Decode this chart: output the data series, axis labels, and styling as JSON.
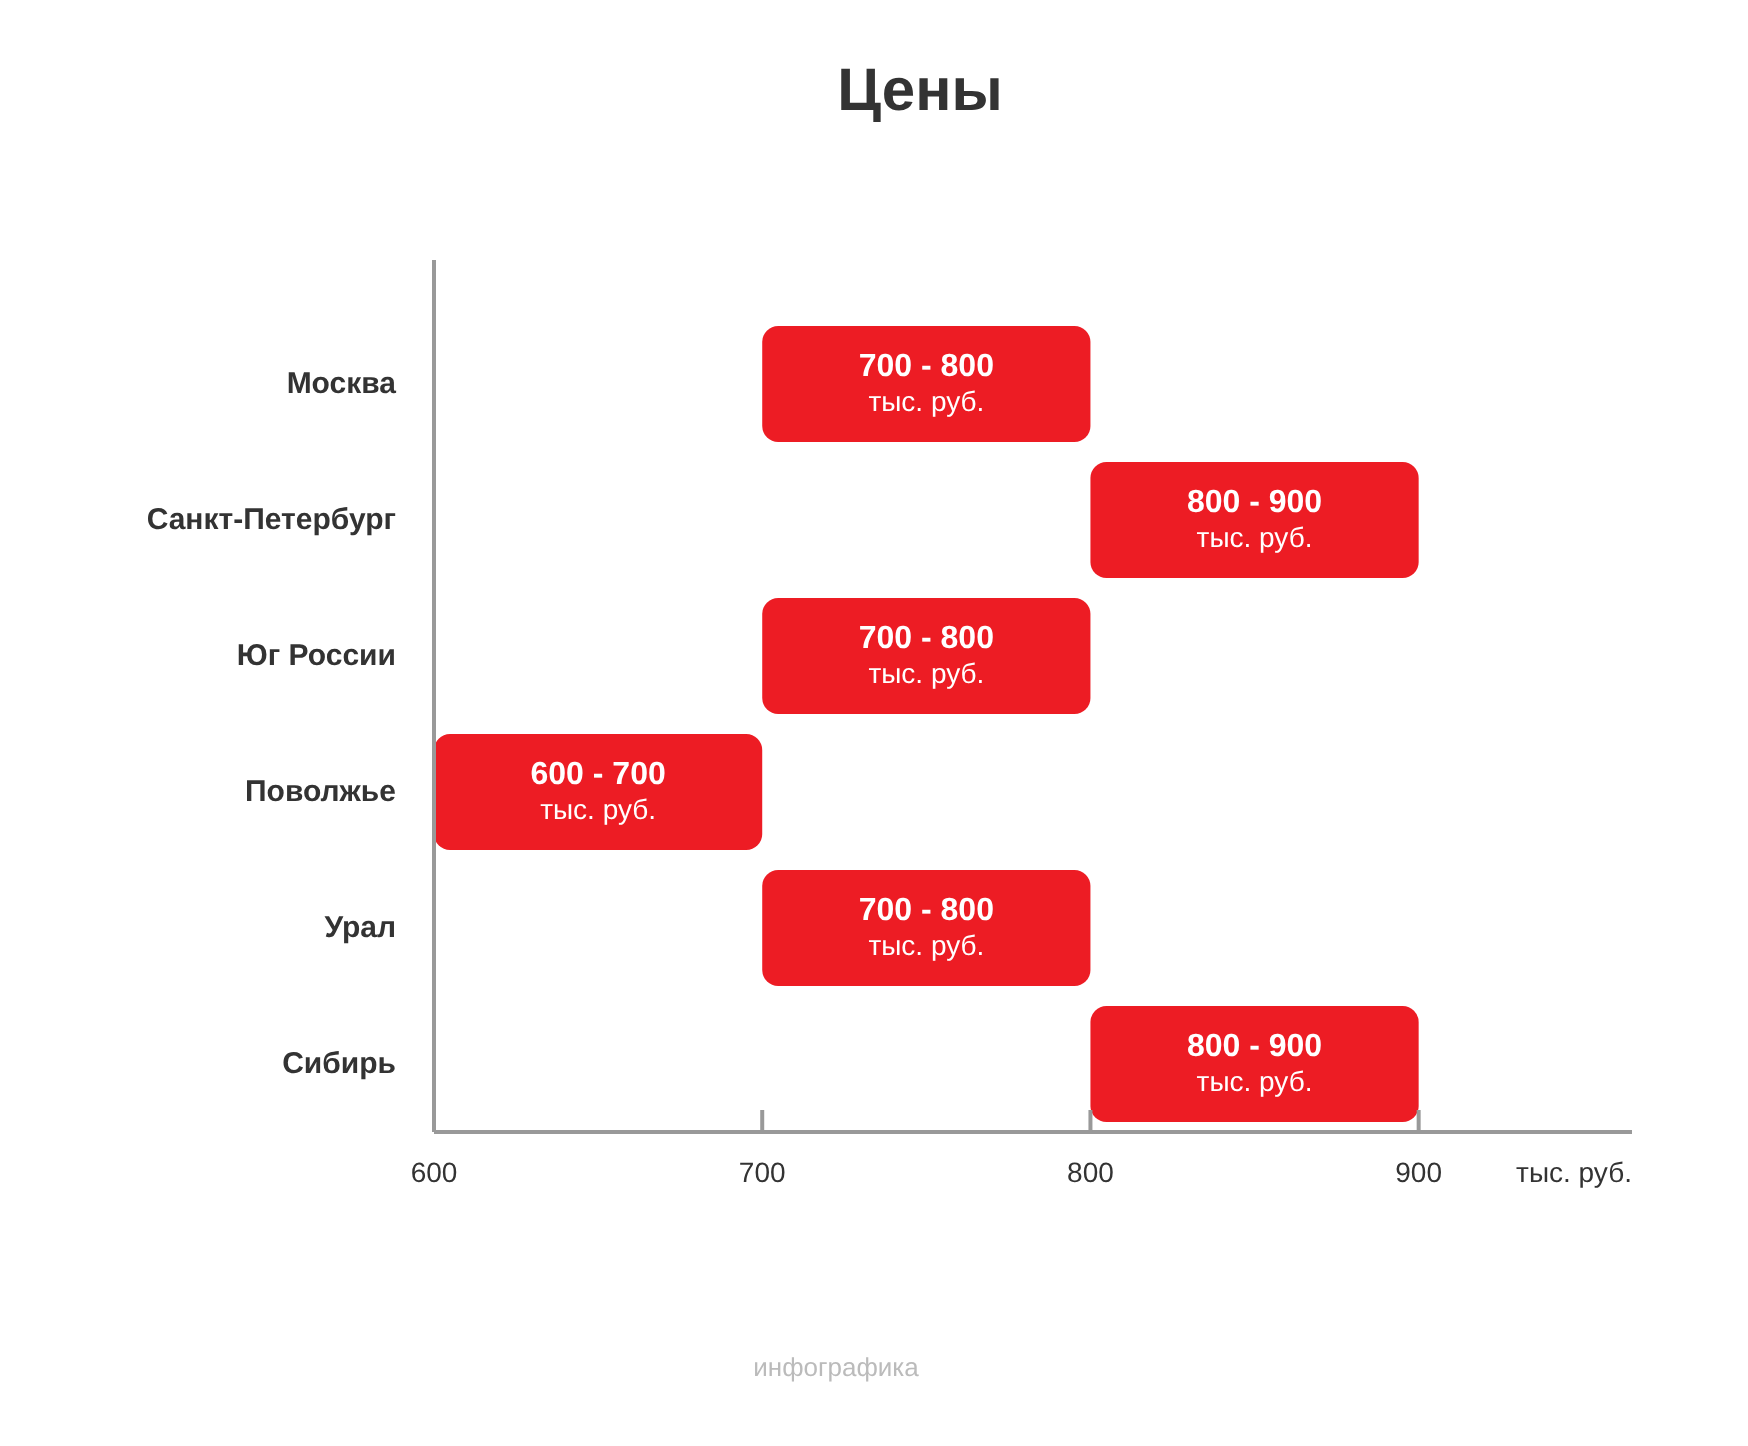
{
  "chart_data": {
    "type": "bar",
    "orientation": "horizontal",
    "title": "Цены",
    "xlabel": "тыс. руб.",
    "categories": [
      "Москва",
      "Санкт-Петербург",
      "Юг России",
      "Поволжье",
      "Урал",
      "Сибирь"
    ],
    "base": [
      700,
      800,
      700,
      600,
      700,
      800
    ],
    "values": [
      100,
      100,
      100,
      100,
      100,
      100
    ],
    "color": "#ed1c24",
    "xlim": [
      600,
      965
    ],
    "xticks": [
      600,
      700,
      800,
      900
    ],
    "annotations": [
      {
        "text": "700 - 800\nтыс. руб.",
        "x": 750,
        "y": "Москва"
      },
      {
        "text": "800 - 900\nтыс. руб.",
        "x": 850,
        "y": "Санкт-Петербург"
      },
      {
        "text": "700 - 800\nтыс. руб.",
        "x": 750,
        "y": "Юг России"
      },
      {
        "text": "600 - 700\nтыс. руб.",
        "x": 650,
        "y": "Поволжье"
      },
      {
        "text": "700 - 800\nтыс. руб.",
        "x": 750,
        "y": "Урал"
      },
      {
        "text": "800 - 900\nтыс. руб.",
        "x": 850,
        "y": "Сибирь"
      },
      "инфографика"
    ]
  }
}
